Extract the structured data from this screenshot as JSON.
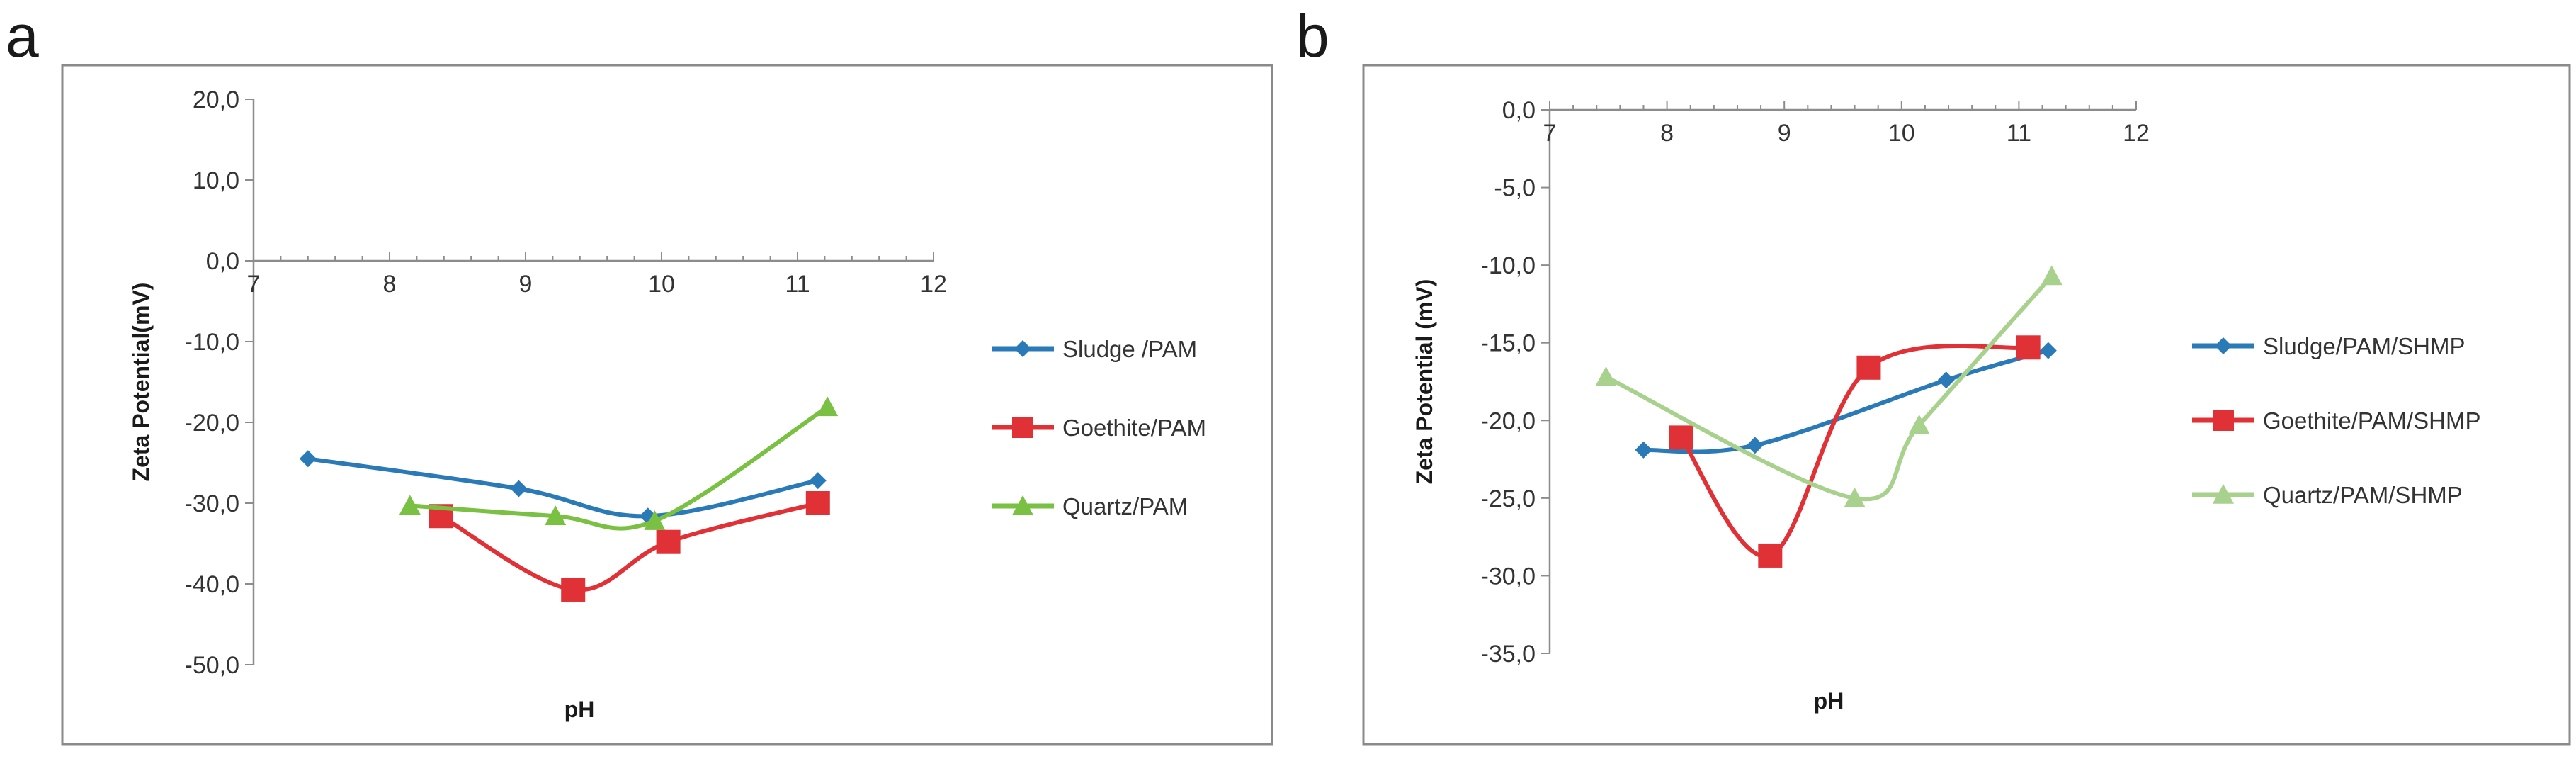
{
  "chart_data": [
    {
      "panel": "a",
      "type": "line",
      "smooth": true,
      "title": "",
      "xlabel": "pH",
      "ylabel": "Zeta Potential(mV)",
      "xlim": [
        7,
        12
      ],
      "ylim": [
        -50,
        20
      ],
      "xticks": [
        "7",
        "8",
        "9",
        "10",
        "11",
        "12"
      ],
      "yticks": [
        "20,0",
        "10,0",
        "0,0",
        "-10,0",
        "-20,0",
        "-30,0",
        "-40,0",
        "-50,0"
      ],
      "grid": false,
      "legend_position": "right",
      "series": [
        {
          "name": "Sludge /PAM",
          "color": "#2a7ab8",
          "marker": "diamond",
          "x": [
            7.4,
            8.95,
            9.9,
            11.15
          ],
          "y": [
            -24.5,
            -28.2,
            -31.6,
            -27.2
          ]
        },
        {
          "name": "Goethite/PAM",
          "color": "#e03236",
          "marker": "square",
          "x": [
            8.38,
            9.35,
            10.05,
            11.15
          ],
          "y": [
            -31.6,
            -40.7,
            -34.8,
            -30.0
          ]
        },
        {
          "name": "Quartz/PAM",
          "color": "#7ac143",
          "marker": "triangle",
          "x": [
            8.15,
            9.22,
            9.95,
            11.22
          ],
          "y": [
            -30.3,
            -31.6,
            -32.2,
            -18.1
          ]
        }
      ]
    },
    {
      "panel": "b",
      "type": "line",
      "smooth": true,
      "title": "",
      "xlabel": "pH",
      "ylabel": "Zeta Potential (mV)",
      "xlim": [
        7,
        12
      ],
      "ylim": [
        -35,
        0
      ],
      "xticks": [
        "7",
        "8",
        "9",
        "10",
        "11",
        "12"
      ],
      "yticks": [
        "0,0",
        "-5,0",
        "-10,0",
        "-15,0",
        "-20,0",
        "-25,0",
        "-30,0",
        "-35,0"
      ],
      "grid": false,
      "legend_position": "right",
      "series": [
        {
          "name": "Sludge/PAM/SHMP",
          "color": "#2a7ab8",
          "marker": "diamond",
          "x": [
            7.8,
            8.75,
            10.38,
            11.25
          ],
          "y": [
            -21.9,
            -21.6,
            -17.4,
            -15.5
          ]
        },
        {
          "name": "Goethite/PAM/SHMP",
          "color": "#e03236",
          "marker": "square",
          "x": [
            8.12,
            8.88,
            9.72,
            11.08
          ],
          "y": [
            -21.1,
            -28.7,
            -16.6,
            -15.3
          ]
        },
        {
          "name": "Quartz/PAM/SHMP",
          "color": "#a9d18e",
          "marker": "triangle",
          "x": [
            7.48,
            9.6,
            10.15,
            11.28
          ],
          "y": [
            -17.2,
            -25.0,
            -20.3,
            -10.7
          ]
        }
      ]
    }
  ]
}
